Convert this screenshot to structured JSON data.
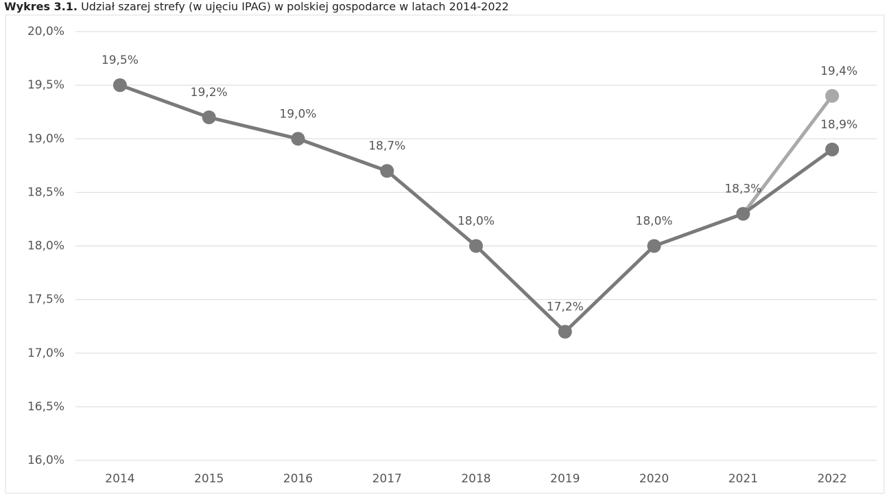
{
  "chart_data": {
    "type": "line",
    "title_prefix": "Wykres 3.1.",
    "title": "Udział szarej strefy (w ujęciu IPAG) w polskiej gospodarce w latach 2014-2022",
    "categories": [
      "2014",
      "2015",
      "2016",
      "2017",
      "2018",
      "2019",
      "2020",
      "2021",
      "2022"
    ],
    "series": [
      {
        "color": "#7a7a7a",
        "values": [
          19.5,
          19.2,
          19.0,
          18.7,
          18.0,
          17.2,
          18.0,
          18.3,
          18.9
        ],
        "value_labels": [
          "19,5%",
          "19,2%",
          "19,0%",
          "18,7%",
          "18,0%",
          "17,2%",
          "18,0%",
          "18,3%",
          "18,9%"
        ]
      },
      {
        "color": "#a9a9a9",
        "values": [
          null,
          null,
          null,
          null,
          null,
          null,
          null,
          18.3,
          19.4
        ],
        "value_labels": [
          null,
          null,
          null,
          null,
          null,
          null,
          null,
          null,
          "19,4%"
        ]
      }
    ],
    "ylim": [
      16.0,
      20.0
    ],
    "yticks": [
      {
        "value": 16.0,
        "label": "16,0%"
      },
      {
        "value": 16.5,
        "label": "16,5%"
      },
      {
        "value": 17.0,
        "label": "17,0%"
      },
      {
        "value": 17.5,
        "label": "17,5%"
      },
      {
        "value": 18.0,
        "label": "18,0%"
      },
      {
        "value": 18.5,
        "label": "18,5%"
      },
      {
        "value": 19.0,
        "label": "19,0%"
      },
      {
        "value": 19.5,
        "label": "19,5%"
      },
      {
        "value": 20.0,
        "label": "20,0%"
      }
    ],
    "grid": true
  }
}
